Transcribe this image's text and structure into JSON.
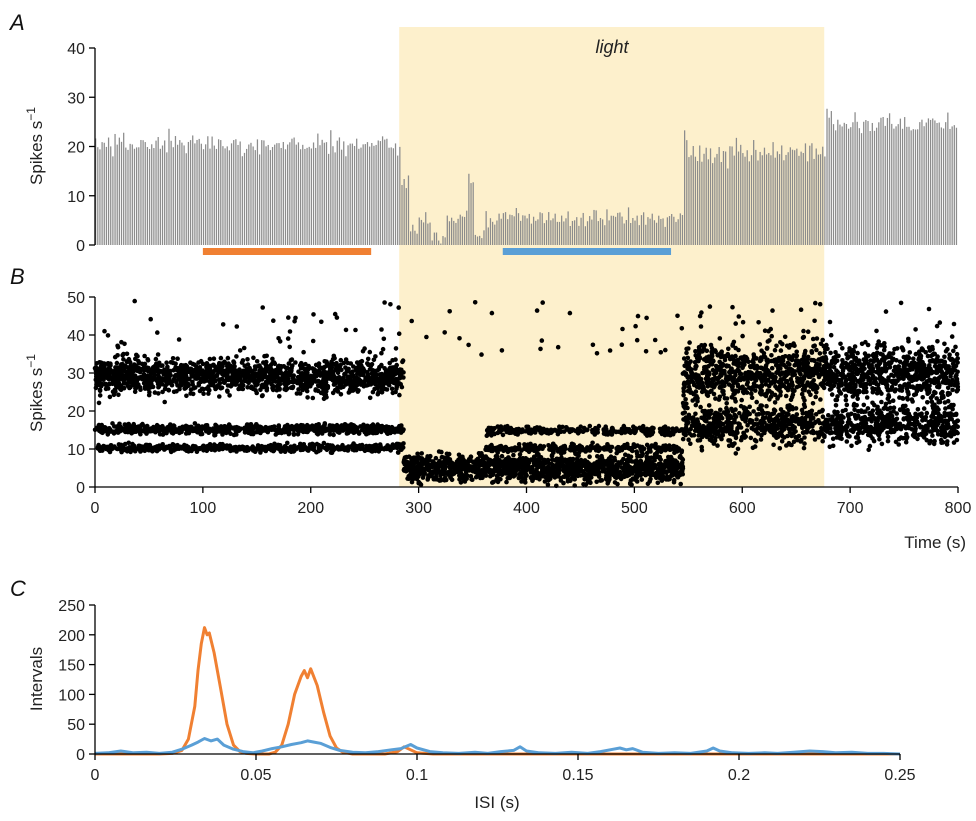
{
  "chart_data": [
    {
      "panel": "A",
      "type": "bar",
      "ylabel": "Spikes s",
      "ylabel_sup": "−1",
      "ylim": [
        0,
        40
      ],
      "yticks": [
        "0",
        "10",
        "20",
        "30",
        "40"
      ],
      "xlim": [
        0,
        800
      ],
      "bin_width_s": 2,
      "rate_profile": [
        {
          "x0": 0,
          "x1": 284,
          "mean": 20.5
        },
        {
          "x0": 284,
          "x1": 292,
          "mean": 13
        },
        {
          "x0": 292,
          "x1": 300,
          "mean": 3
        },
        {
          "x0": 300,
          "x1": 312,
          "mean": 5
        },
        {
          "x0": 312,
          "x1": 325,
          "mean": 1.5
        },
        {
          "x0": 325,
          "x1": 345,
          "mean": 6
        },
        {
          "x0": 345,
          "x1": 352,
          "mean": 13
        },
        {
          "x0": 352,
          "x1": 362,
          "mean": 1.5
        },
        {
          "x0": 362,
          "x1": 545,
          "mean": 5.5
        },
        {
          "x0": 545,
          "x1": 550,
          "mean": 23
        },
        {
          "x0": 550,
          "x1": 677,
          "mean": 18.5
        },
        {
          "x0": 677,
          "x1": 800,
          "mean": 25
        }
      ],
      "annotation": "light",
      "light_interval": [
        282,
        676
      ],
      "bars_below": [
        {
          "x0": 100,
          "x1": 256,
          "color": "#f08032"
        },
        {
          "x0": 378,
          "x1": 534,
          "color": "#5a9fd6"
        }
      ]
    },
    {
      "panel": "B",
      "type": "scatter",
      "ylabel": "Spikes s",
      "ylabel_sup": "−1",
      "ylim": [
        0,
        50
      ],
      "yticks": [
        "0",
        "10",
        "20",
        "30",
        "40",
        "50"
      ],
      "xlim": [
        0,
        800
      ],
      "xticks": [
        "0",
        "100",
        "200",
        "300",
        "400",
        "500",
        "600",
        "700",
        "800"
      ],
      "xlabel": "Time (s)",
      "clusters": [
        {
          "x0": 0,
          "x1": 286,
          "y": 29,
          "spread": 3.2,
          "n": 1400
        },
        {
          "x0": 0,
          "x1": 286,
          "y": 15.2,
          "spread": 0.9,
          "n": 700
        },
        {
          "x0": 0,
          "x1": 286,
          "y": 10.3,
          "spread": 0.7,
          "n": 500
        },
        {
          "x0": 286,
          "x1": 545,
          "y": 5,
          "spread": 2.6,
          "n": 1300
        },
        {
          "x0": 362,
          "x1": 545,
          "y": 14.8,
          "spread": 0.8,
          "n": 250
        },
        {
          "x0": 362,
          "x1": 545,
          "y": 10.2,
          "spread": 0.7,
          "n": 250
        },
        {
          "x0": 545,
          "x1": 800,
          "y": 30,
          "spread": 5,
          "n": 1400
        },
        {
          "x0": 545,
          "x1": 800,
          "y": 16.5,
          "spread": 3.5,
          "n": 1000
        }
      ],
      "light_interval": [
        282,
        676
      ]
    },
    {
      "panel": "C",
      "type": "line",
      "ylabel": "Intervals",
      "xlabel": "ISI (s)",
      "ylim": [
        0,
        250
      ],
      "yticks": [
        "0",
        "50",
        "100",
        "150",
        "200",
        "250"
      ],
      "xlim": [
        0,
        0.25
      ],
      "xticks": [
        "0",
        "0.05",
        "0.1",
        "0.15",
        "0.2",
        "0.25"
      ],
      "series": [
        {
          "color": "#f08032",
          "points": [
            [
              0,
              0
            ],
            [
              0.02,
              0
            ],
            [
              0.024,
              1
            ],
            [
              0.027,
              6
            ],
            [
              0.029,
              25
            ],
            [
              0.031,
              80
            ],
            [
              0.032,
              140
            ],
            [
              0.033,
              185
            ],
            [
              0.034,
              212
            ],
            [
              0.0348,
              200
            ],
            [
              0.0355,
              203
            ],
            [
              0.037,
              170
            ],
            [
              0.039,
              110
            ],
            [
              0.041,
              50
            ],
            [
              0.043,
              15
            ],
            [
              0.045,
              4
            ],
            [
              0.047,
              1
            ],
            [
              0.05,
              0
            ],
            [
              0.054,
              0
            ],
            [
              0.056,
              3
            ],
            [
              0.058,
              15
            ],
            [
              0.06,
              50
            ],
            [
              0.062,
              100
            ],
            [
              0.064,
              130
            ],
            [
              0.065,
              140
            ],
            [
              0.066,
              128
            ],
            [
              0.067,
              143
            ],
            [
              0.069,
              115
            ],
            [
              0.071,
              70
            ],
            [
              0.073,
              30
            ],
            [
              0.075,
              10
            ],
            [
              0.077,
              3
            ],
            [
              0.08,
              0
            ],
            [
              0.09,
              0
            ],
            [
              0.094,
              4
            ],
            [
              0.096,
              12
            ],
            [
              0.098,
              7
            ],
            [
              0.1,
              2
            ],
            [
              0.105,
              0
            ],
            [
              0.25,
              0
            ]
          ]
        },
        {
          "color": "#5a9fd6",
          "points": [
            [
              0,
              1
            ],
            [
              0.004,
              2
            ],
            [
              0.008,
              5
            ],
            [
              0.012,
              2
            ],
            [
              0.016,
              3
            ],
            [
              0.02,
              1
            ],
            [
              0.024,
              3
            ],
            [
              0.027,
              8
            ],
            [
              0.03,
              15
            ],
            [
              0.032,
              20
            ],
            [
              0.034,
              26
            ],
            [
              0.036,
              22
            ],
            [
              0.038,
              25
            ],
            [
              0.04,
              15
            ],
            [
              0.043,
              8
            ],
            [
              0.046,
              4
            ],
            [
              0.049,
              2
            ],
            [
              0.052,
              5
            ],
            [
              0.055,
              9
            ],
            [
              0.058,
              12
            ],
            [
              0.061,
              16
            ],
            [
              0.064,
              19
            ],
            [
              0.066,
              22
            ],
            [
              0.068,
              20
            ],
            [
              0.07,
              18
            ],
            [
              0.073,
              11
            ],
            [
              0.076,
              6
            ],
            [
              0.08,
              3
            ],
            [
              0.084,
              2
            ],
            [
              0.088,
              4
            ],
            [
              0.092,
              7
            ],
            [
              0.095,
              9
            ],
            [
              0.098,
              16
            ],
            [
              0.1,
              10
            ],
            [
              0.104,
              4
            ],
            [
              0.108,
              2
            ],
            [
              0.113,
              1
            ],
            [
              0.118,
              3
            ],
            [
              0.122,
              1
            ],
            [
              0.126,
              4
            ],
            [
              0.13,
              6
            ],
            [
              0.132,
              12
            ],
            [
              0.134,
              5
            ],
            [
              0.138,
              2
            ],
            [
              0.143,
              1
            ],
            [
              0.148,
              3
            ],
            [
              0.153,
              1
            ],
            [
              0.157,
              4
            ],
            [
              0.161,
              8
            ],
            [
              0.163,
              10
            ],
            [
              0.165,
              7
            ],
            [
              0.167,
              9
            ],
            [
              0.17,
              3
            ],
            [
              0.175,
              1
            ],
            [
              0.18,
              2
            ],
            [
              0.185,
              1
            ],
            [
              0.19,
              5
            ],
            [
              0.192,
              10
            ],
            [
              0.194,
              5
            ],
            [
              0.198,
              2
            ],
            [
              0.203,
              1
            ],
            [
              0.208,
              2
            ],
            [
              0.212,
              1
            ],
            [
              0.217,
              3
            ],
            [
              0.222,
              5
            ],
            [
              0.226,
              4
            ],
            [
              0.23,
              2
            ],
            [
              0.235,
              3
            ],
            [
              0.24,
              1
            ],
            [
              0.245,
              1
            ],
            [
              0.25,
              0
            ]
          ]
        }
      ]
    }
  ],
  "theme": {
    "light_fill": "#fdf0cc",
    "bar_color": "#8c8c8c",
    "dot_color": "#000000",
    "orange": "#f08032",
    "blue": "#5a9fd6"
  }
}
